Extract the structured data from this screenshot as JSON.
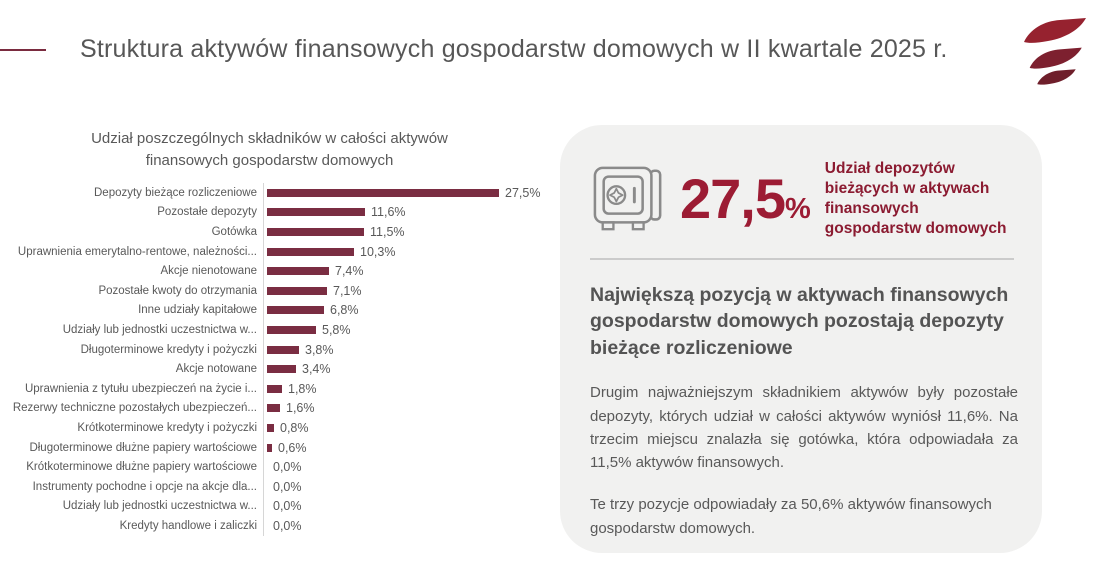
{
  "header": {
    "title": "Struktura aktywów finansowych gospodarstw domowych w II kwartale 2025 r."
  },
  "colors": {
    "bar": "#7a2d42",
    "accent_dash": "#7a2b3f",
    "stat_red": "#9c1c34",
    "caption_red": "#8b1b31",
    "logo_red_top": "#96222f",
    "logo_red_mid": "#7d202f",
    "logo_red_bottom": "#6f1f2b",
    "panel_bg": "#f1f1f0"
  },
  "chart_data": {
    "type": "bar",
    "orientation": "horizontal",
    "title": "Udział poszczególnych składników w całości aktywów finansowych gospodarstw domowych",
    "categories": [
      "Depozyty bieżące rozliczeniowe",
      "Pozostałe depozyty",
      "Gotówka",
      "Uprawnienia emerytalno-rentowe, należności...",
      "Akcje nienotowane",
      "Pozostałe kwoty do otrzymania",
      "Inne udziały kapitałowe",
      "Udziały lub jednostki uczestnictwa w...",
      "Długoterminowe kredyty i pożyczki",
      "Akcje notowane",
      "Uprawnienia z tytułu ubezpieczeń na życie i...",
      "Rezerwy techniczne pozostałych ubezpieczeń...",
      "Krótkoterminowe kredyty i pożyczki",
      "Długoterminowe dłużne papiery wartościowe",
      "Krótkoterminowe dłużne papiery wartościowe",
      "Instrumenty pochodne i opcje na akcje dla...",
      "Udziały lub jednostki uczestnictwa w...",
      "Kredyty handlowe i zaliczki"
    ],
    "values": [
      27.5,
      11.6,
      11.5,
      10.3,
      7.4,
      7.1,
      6.8,
      5.8,
      3.8,
      3.4,
      1.8,
      1.6,
      0.8,
      0.6,
      0.0,
      0.0,
      0.0,
      0.0
    ],
    "value_labels": [
      "27,5%",
      "11,6%",
      "11,5%",
      "10,3%",
      "7,4%",
      "7,1%",
      "6,8%",
      "5,8%",
      "3,8%",
      "3,4%",
      "1,8%",
      "1,6%",
      "0,8%",
      "0,6%",
      "0,0%",
      "0,0%",
      "0,0%",
      "0,0%"
    ],
    "xlim": [
      0,
      30
    ],
    "bar_color": "#7a2d42",
    "grid": false,
    "legend": false
  },
  "panel": {
    "stat": {
      "value": "27,5",
      "unit": "%",
      "caption": "Udział depozytów bieżących w aktywach finansowych gospodarstw domowych"
    },
    "heading": "Największą pozycją w aktywach finansowych gospodarstw domowych pozostają depozyty bieżące rozliczeniowe",
    "paragraphs": [
      "Drugim najważniejszym składnikiem aktywów były pozostałe depozyty, których udział w całości aktywów wyniósł 11,6%. Na trzecim miejscu znalazła się gotówka, która odpowiadała za 11,5% aktywów finansowych.",
      "Te trzy pozycje odpowiadały za 50,6% aktywów finansowych gospodarstw domowych."
    ]
  }
}
